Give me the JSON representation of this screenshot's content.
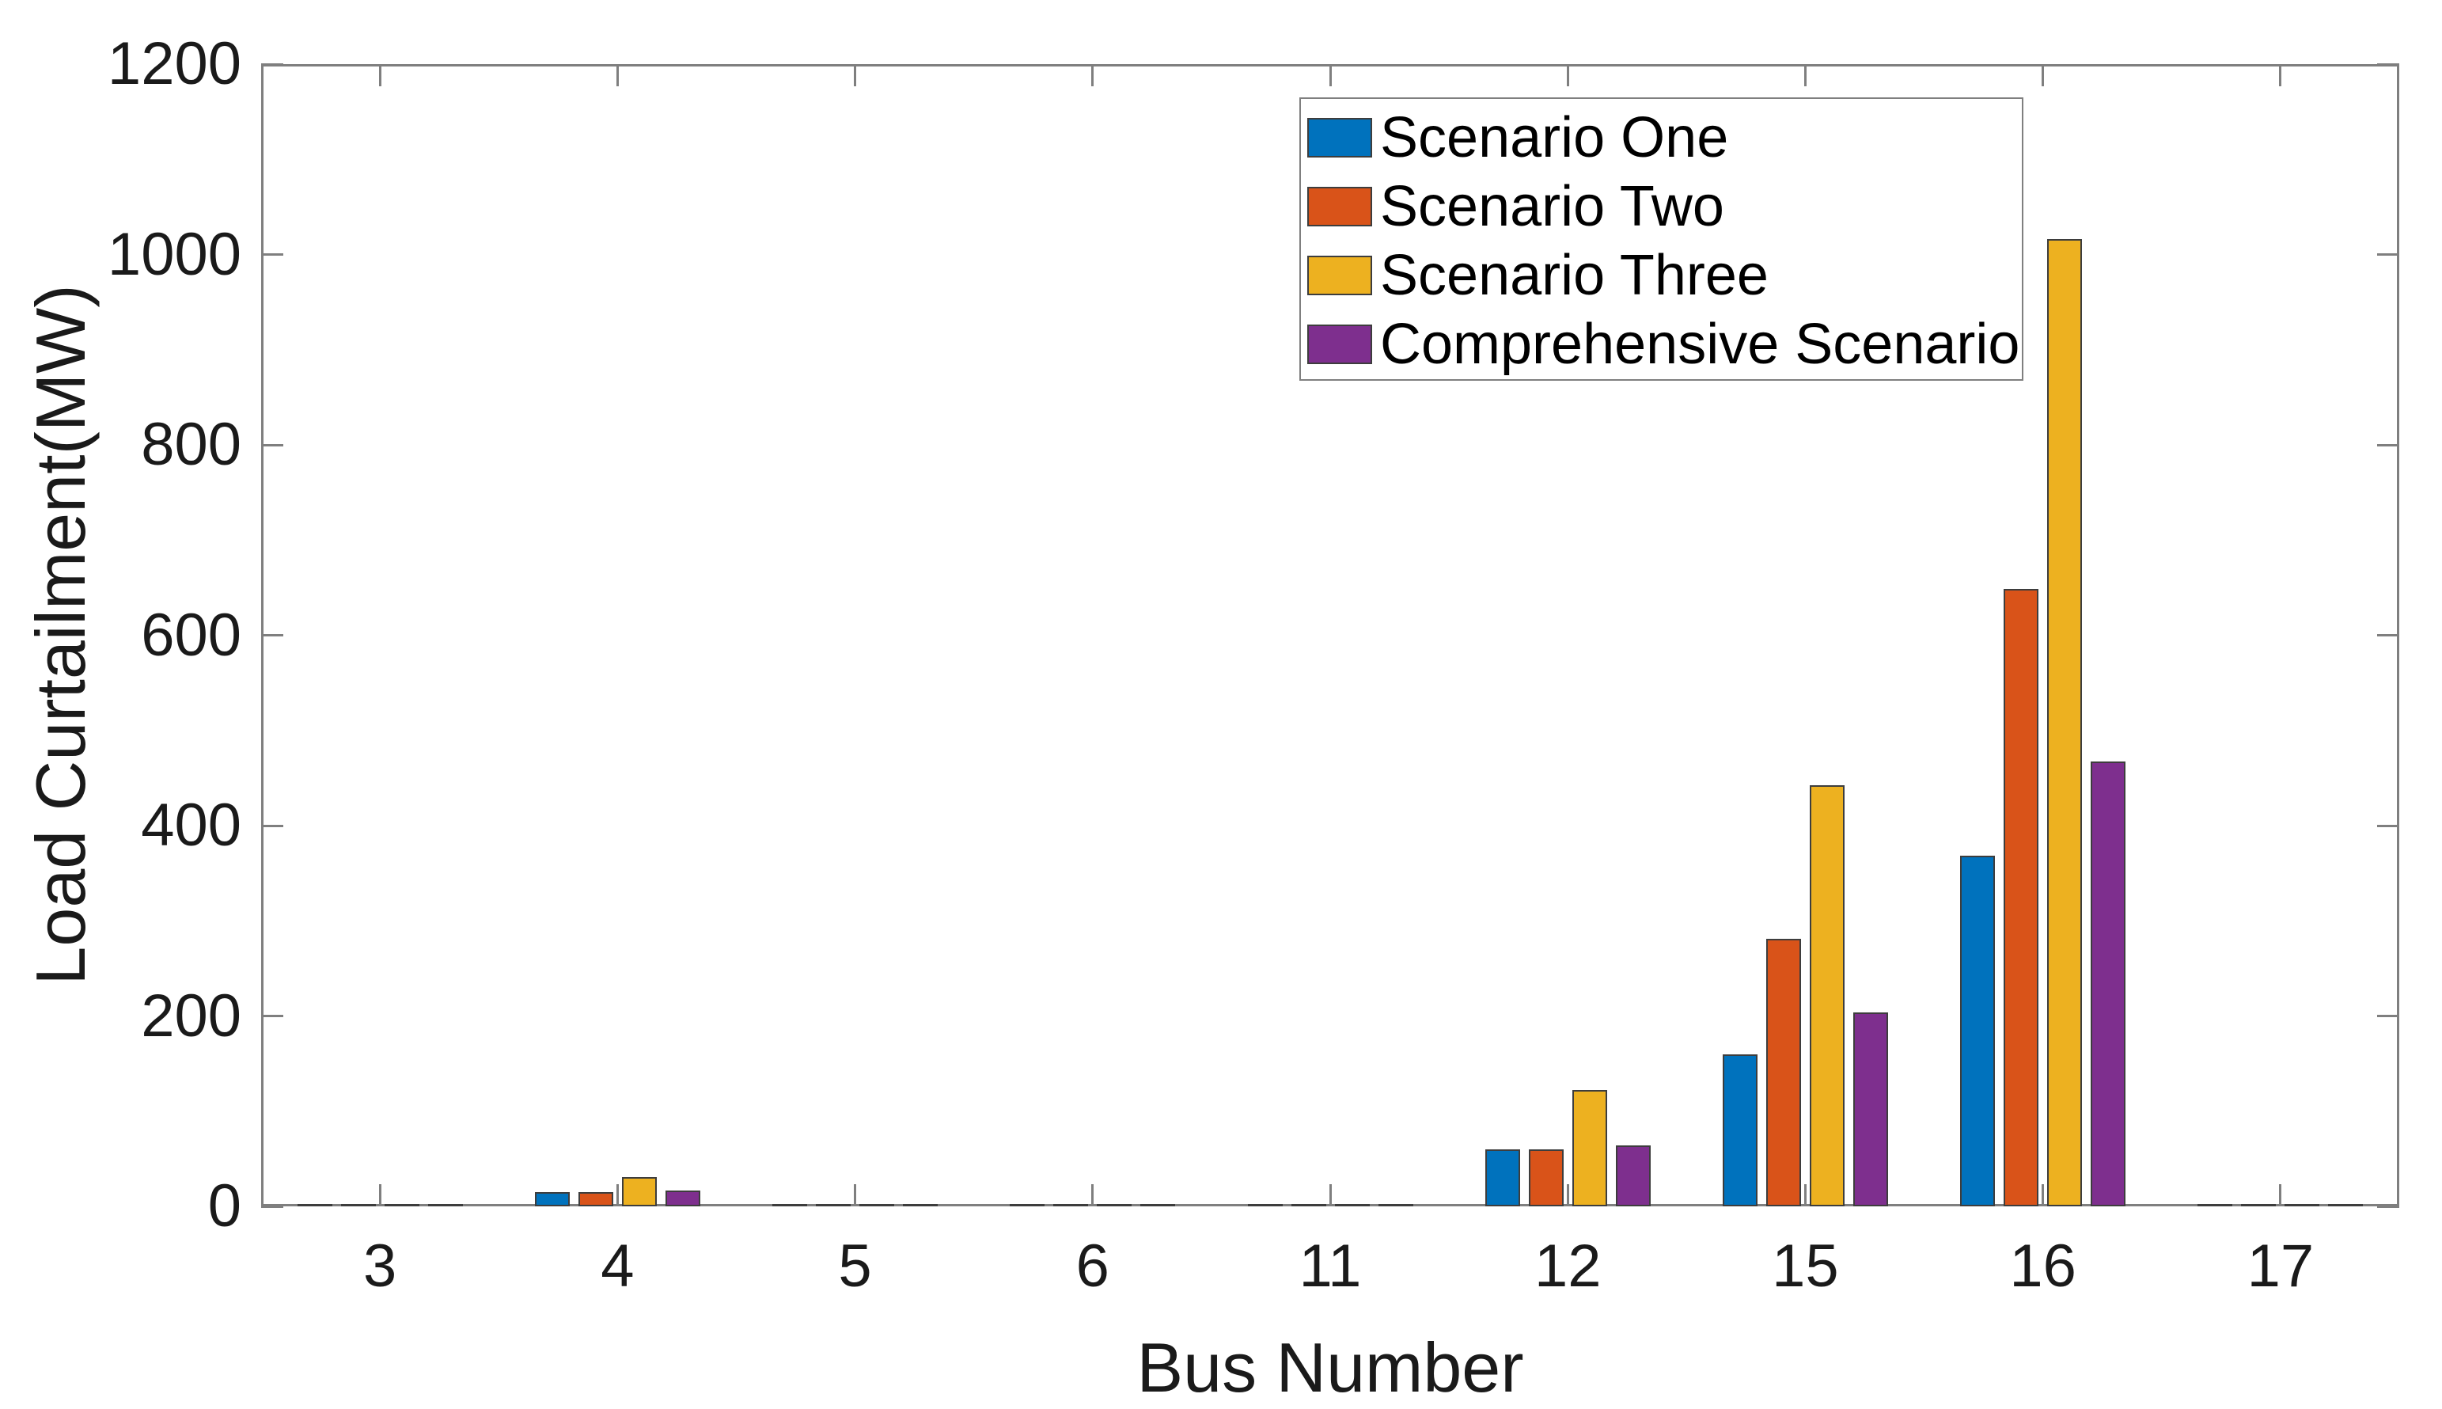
{
  "chart_data": {
    "type": "bar",
    "title": "",
    "xlabel": "Bus Number",
    "ylabel": "Load Curtailment(MW)",
    "categories": [
      "3",
      "4",
      "5",
      "6",
      "11",
      "12",
      "15",
      "16",
      "17"
    ],
    "series": [
      {
        "name": "Scenario One",
        "color": "#0072BD",
        "values": [
          0,
          15,
          0,
          0,
          0,
          60,
          160,
          368,
          0
        ]
      },
      {
        "name": "Scenario Two",
        "color": "#D95319",
        "values": [
          0,
          15,
          0,
          0,
          0,
          60,
          281,
          649,
          0
        ]
      },
      {
        "name": "Scenario Three",
        "color": "#EDB120",
        "values": [
          0,
          31,
          0,
          0,
          0,
          122,
          442,
          1016,
          0
        ]
      },
      {
        "name": "Comprehensive Scenario",
        "color": "#7E2F8E",
        "values": [
          0,
          17,
          0,
          0,
          0,
          64,
          204,
          467,
          0
        ]
      }
    ],
    "ylim": [
      0,
      1200
    ],
    "yticks": [
      0,
      200,
      400,
      600,
      800,
      1000,
      1200
    ],
    "grid": false,
    "legend_position": "top-right",
    "styles": {
      "axis_color": "#7f7f7f",
      "bar_edge_color": "#3d3d3d",
      "text_color": "#1a1a1a",
      "background": "#ffffff"
    }
  }
}
